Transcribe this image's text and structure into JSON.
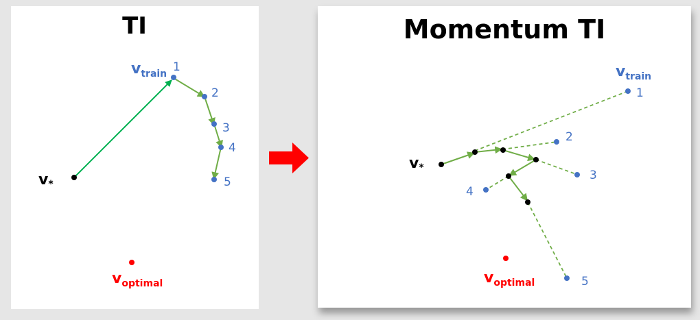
{
  "left": {
    "title": "TI",
    "v_train": {
      "base": "v",
      "sub": "train"
    },
    "v_star": {
      "base": "v",
      "sub": "*"
    },
    "v_optimal": {
      "base": "v",
      "sub": "optimal"
    },
    "point_labels": [
      "1",
      "2",
      "3",
      "4",
      "5"
    ]
  },
  "right": {
    "title": "Momentum TI",
    "v_train": {
      "base": "v",
      "sub": "train"
    },
    "v_star": {
      "base": "v",
      "sub": "*"
    },
    "v_optimal": {
      "base": "v",
      "sub": "optimal"
    },
    "point_labels": [
      "1",
      "2",
      "3",
      "4",
      "5"
    ]
  },
  "colors": {
    "point_blue": "#4472c4",
    "path_green_dark": "#00b050",
    "path_green": "#70ad47",
    "optimal_red": "#ff0000",
    "transition_arrow": "#ff0000",
    "momentum_point": "#000000"
  },
  "icons": {
    "transition_arrow": "right-arrow-icon"
  }
}
